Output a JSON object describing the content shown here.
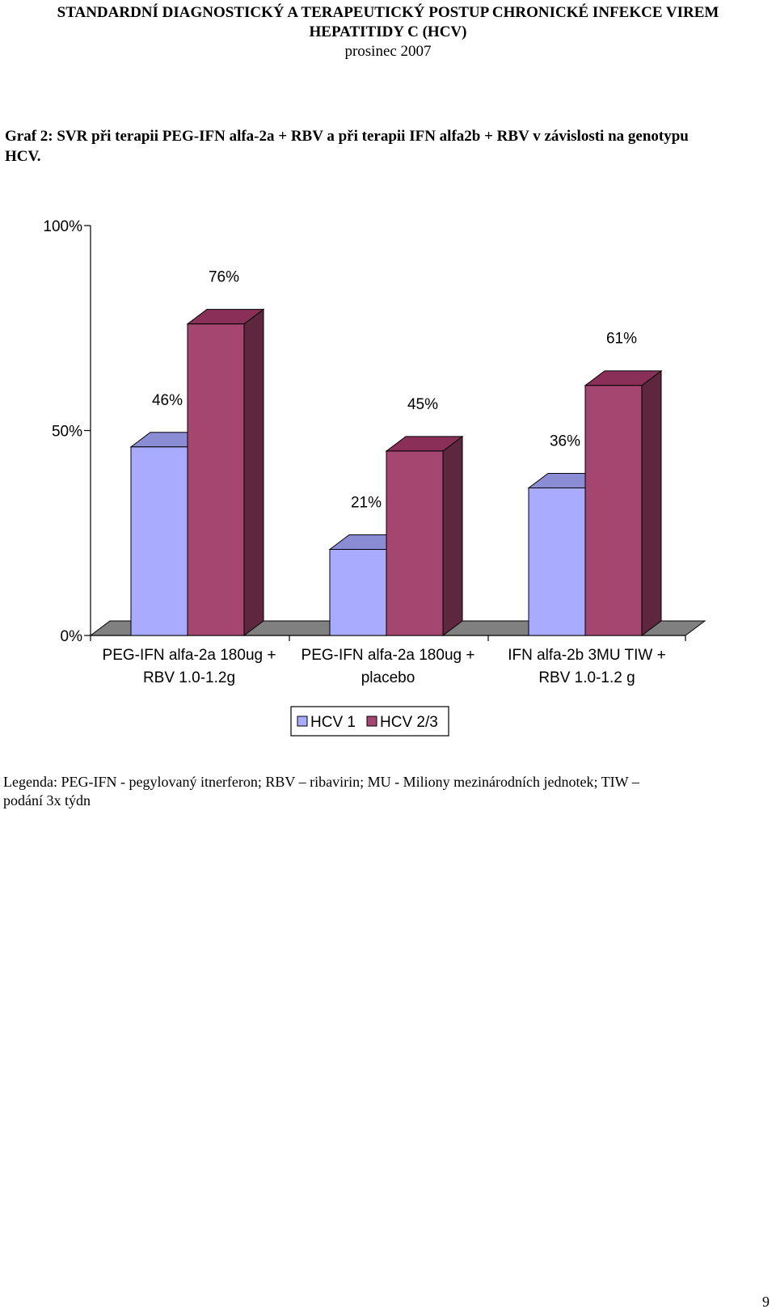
{
  "header": {
    "line1": "STANDARDNÍ DIAGNOSTICKÝ A TERAPEUTICKÝ POSTUP CHRONICKÉ  INFEKCE VIREM",
    "line2": "HEPATITIDY C (HCV)",
    "line3": "prosinec 2007"
  },
  "caption": {
    "line1": "Graf 2: SVR při terapii PEG-IFN alfa-2a + RBV a při terapii IFN alfa2b + RBV v závislosti na genotypu",
    "line2": "HCV."
  },
  "chart_data": {
    "type": "bar",
    "style": "3d-clustered",
    "categories": [
      [
        "PEG-IFN alfa-2a 180ug +",
        "RBV 1.0-1.2g"
      ],
      [
        "PEG-IFN alfa-2a 180ug +",
        "placebo"
      ],
      [
        "IFN alfa-2b 3MU TIW +",
        "RBV 1.0-1.2 g"
      ]
    ],
    "series": [
      {
        "name": "HCV 1",
        "values": [
          46,
          21,
          36
        ],
        "labels": [
          "46%",
          "21%",
          "36%"
        ],
        "color": "#a9abff",
        "top_color": "#8a8cd4",
        "side_color": "#6f71b0"
      },
      {
        "name": "HCV 2/3",
        "values": [
          76,
          45,
          61
        ],
        "labels": [
          "76%",
          "45%",
          "61%"
        ],
        "color": "#a44670",
        "top_color": "#8a3058",
        "side_color": "#5f2640"
      }
    ],
    "ylim": [
      0,
      100
    ],
    "yticks": [
      0,
      50,
      100
    ],
    "ytick_labels": [
      "0%",
      "50%",
      "100%"
    ],
    "legend_position": "bottom",
    "grid": false,
    "floor_color": "#808080"
  },
  "legend_note": {
    "line1": "Legenda: PEG-IFN -  pegylovaný itnerferon;  RBV – ribavirin; MU  - Miliony mezinárodních jednotek; TIW –",
    "line2": "podání 3x týdn"
  },
  "page_number": "9"
}
